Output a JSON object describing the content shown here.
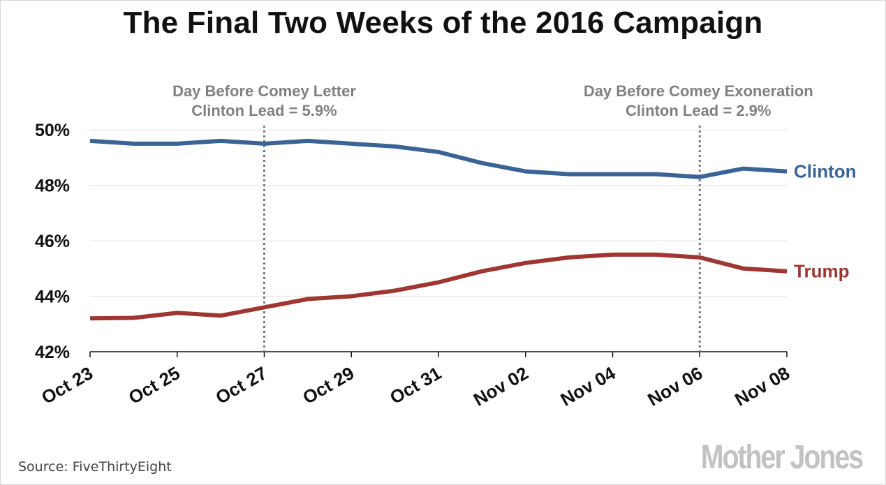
{
  "chart_data": {
    "type": "line",
    "title": "The Final Two Weeks of the 2016 Campaign",
    "x": [
      "Oct 23",
      "Oct 24",
      "Oct 25",
      "Oct 26",
      "Oct 27",
      "Oct 28",
      "Oct 29",
      "Oct 30",
      "Oct 31",
      "Nov 01",
      "Nov 02",
      "Nov 03",
      "Nov 04",
      "Nov 05",
      "Nov 06",
      "Nov 07",
      "Nov 08"
    ],
    "tick_labels": [
      "Oct 23",
      "Oct 25",
      "Oct 27",
      "Oct 29",
      "Oct 31",
      "Nov 02",
      "Nov 04",
      "Nov 06",
      "Nov 08"
    ],
    "ylim": [
      42,
      50
    ],
    "yticks": [
      "50%",
      "48%",
      "46%",
      "44%",
      "42%"
    ],
    "grid": true,
    "series": [
      {
        "name": "Clinton",
        "color": "#3a6496",
        "values": [
          49.6,
          49.5,
          49.5,
          49.6,
          49.5,
          49.6,
          49.5,
          49.4,
          49.2,
          48.8,
          48.5,
          48.4,
          48.4,
          48.4,
          48.3,
          48.6,
          48.5
        ]
      },
      {
        "name": "Trump",
        "color": "#a03632",
        "values": [
          43.2,
          43.22,
          43.4,
          43.3,
          43.6,
          43.9,
          44.0,
          44.2,
          44.5,
          44.9,
          45.2,
          45.4,
          45.5,
          45.5,
          45.4,
          45.0,
          44.9
        ]
      }
    ],
    "annotations": [
      {
        "x": "Oct 27",
        "lines": [
          "Day Before Comey Letter",
          "Clinton Lead = 5.9%"
        ]
      },
      {
        "x": "Nov 06",
        "lines": [
          "Day Before Comey Exoneration",
          "Clinton Lead = 2.9%"
        ]
      }
    ]
  },
  "source": "Source:  FiveThirtyEight",
  "logo": "Mother Jones"
}
